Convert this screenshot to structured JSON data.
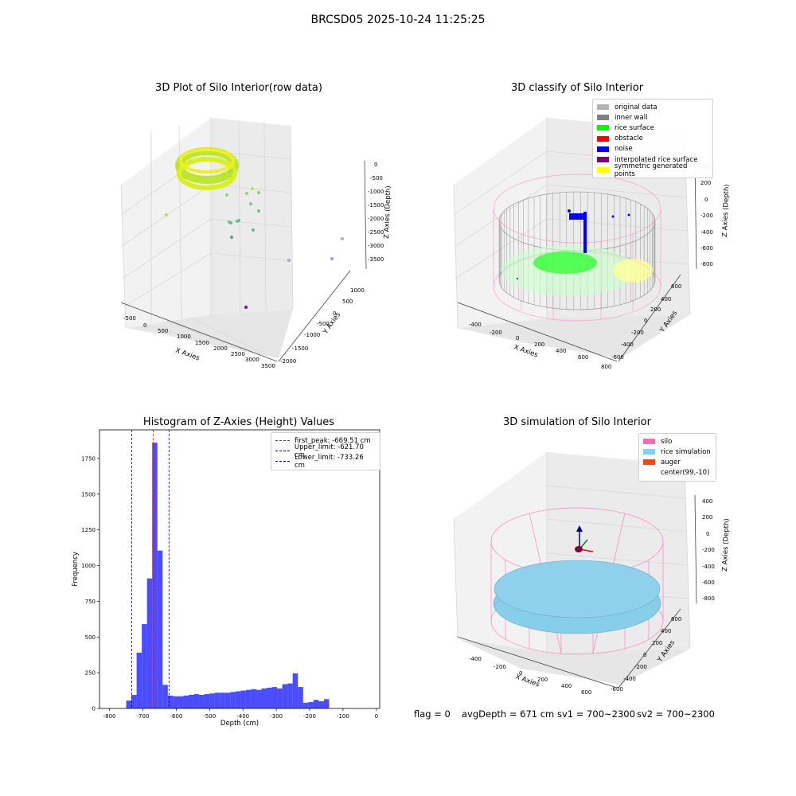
{
  "suptitle": "BRCSD05 2025-10-24 11:25:25",
  "colors": {
    "original": "#b4b4b4",
    "inner_wall": "#808080",
    "rice_surface": "#00ff00",
    "obstacle": "#ff0000",
    "noise": "#0000ff",
    "interpolated": "#800080",
    "symmetric": "#ffff00",
    "silo": "#ff69b4",
    "rice_sim": "#87ceeb",
    "auger": "#ff4500",
    "hist": "#0000ff"
  },
  "plots": {
    "raw": {
      "title": "3D Plot of Silo Interior(row data)",
      "xlabel": "X Axies",
      "ylabel": "Y Axies",
      "zlabel": "Z Axies (Depth)",
      "xticks": [
        "-500",
        "0",
        "500",
        "1000",
        "1500",
        "2000",
        "2500",
        "3000",
        "3500"
      ],
      "yticks": [
        "1000",
        "500",
        "0",
        "-500",
        "-1000",
        "-1500",
        "-2000"
      ],
      "zticks": [
        "0",
        "-500",
        "-1000",
        "-1500",
        "-2000",
        "-2500",
        "-3000",
        "-3500"
      ]
    },
    "classify": {
      "title": "3D classify of Silo Interior",
      "xlabel": "X Axies",
      "ylabel": "Y Axies",
      "zlabel": "Z Axies (Depth)",
      "xticks": [
        "-400",
        "-200",
        "0",
        "200",
        "400",
        "600",
        "800"
      ],
      "yticks": [
        "600",
        "400",
        "200",
        "0",
        "-200",
        "-400",
        "-600"
      ],
      "zticks": [
        "400",
        "200",
        "0",
        "-200",
        "-400",
        "-600",
        "-800"
      ],
      "legend": [
        {
          "label": "original data",
          "color": "#b4b4b4"
        },
        {
          "label": "inner wall",
          "color": "#808080"
        },
        {
          "label": "rice surface",
          "color": "#00ff00"
        },
        {
          "label": "obstacle",
          "color": "#ff0000"
        },
        {
          "label": "noise",
          "color": "#0000ff"
        },
        {
          "label": "interpolated rice surface",
          "color": "#800080"
        },
        {
          "label": "symmetric generated points",
          "color": "#ffff00"
        }
      ]
    },
    "simulation": {
      "title": "3D simulation of Silo Interior",
      "xlabel": "X Axies",
      "ylabel": "Y Axies",
      "zlabel": "Z Axies (Depth)",
      "xticks": [
        "-400",
        "-200",
        "0",
        "200",
        "400",
        "600"
      ],
      "yticks": [
        "600",
        "400",
        "200",
        "0",
        "-200",
        "-400",
        "-600"
      ],
      "zticks": [
        "400",
        "200",
        "0",
        "-200",
        "-400",
        "-600",
        "-800"
      ],
      "legend": [
        {
          "label": "silo",
          "color": "#ff69b4"
        },
        {
          "label": "rice simulation",
          "color": "#87ceeb"
        },
        {
          "label": "auger",
          "color": "#ff4500"
        },
        {
          "label": "center(99,-10)",
          "color": "#ffffff"
        }
      ]
    }
  },
  "status": {
    "flag": "flag = 0",
    "avg": "avgDepth = 671 cm",
    "sv1": "sv1 = 700~2300",
    "sv2": "sv2 = 700~2300"
  },
  "chart_data": {
    "type": "bar",
    "title": "Histogram of Z-Axies (Height) Values",
    "xlabel": "Depth (cm)",
    "ylabel": "Frequency",
    "xlim": [
      -830,
      10
    ],
    "ylim": [
      0,
      1950
    ],
    "xticks": [
      -800,
      -700,
      -600,
      -500,
      -400,
      -300,
      -200,
      -100,
      0
    ],
    "yticks": [
      0,
      250,
      500,
      750,
      1000,
      1250,
      1500,
      1750
    ],
    "bin_width": 15.6,
    "bin_start": -750,
    "values": [
      55,
      95,
      390,
      590,
      910,
      1860,
      1105,
      165,
      90,
      85,
      85,
      90,
      95,
      100,
      95,
      100,
      105,
      110,
      110,
      110,
      115,
      120,
      125,
      130,
      135,
      130,
      140,
      145,
      150,
      140,
      170,
      175,
      245,
      150,
      40,
      45,
      60,
      50,
      65
    ],
    "vlines": [
      {
        "label": "first_peak: -669.51 cm",
        "x": -669.51,
        "color": "#ff0000"
      },
      {
        "label": "Upper_limit: -621.70 cm",
        "x": -621.7,
        "color": "#00008b"
      },
      {
        "label": "Lower_limit: -733.26 cm",
        "x": -733.26,
        "color": "#00008b"
      }
    ],
    "legend_position": "top-right"
  }
}
